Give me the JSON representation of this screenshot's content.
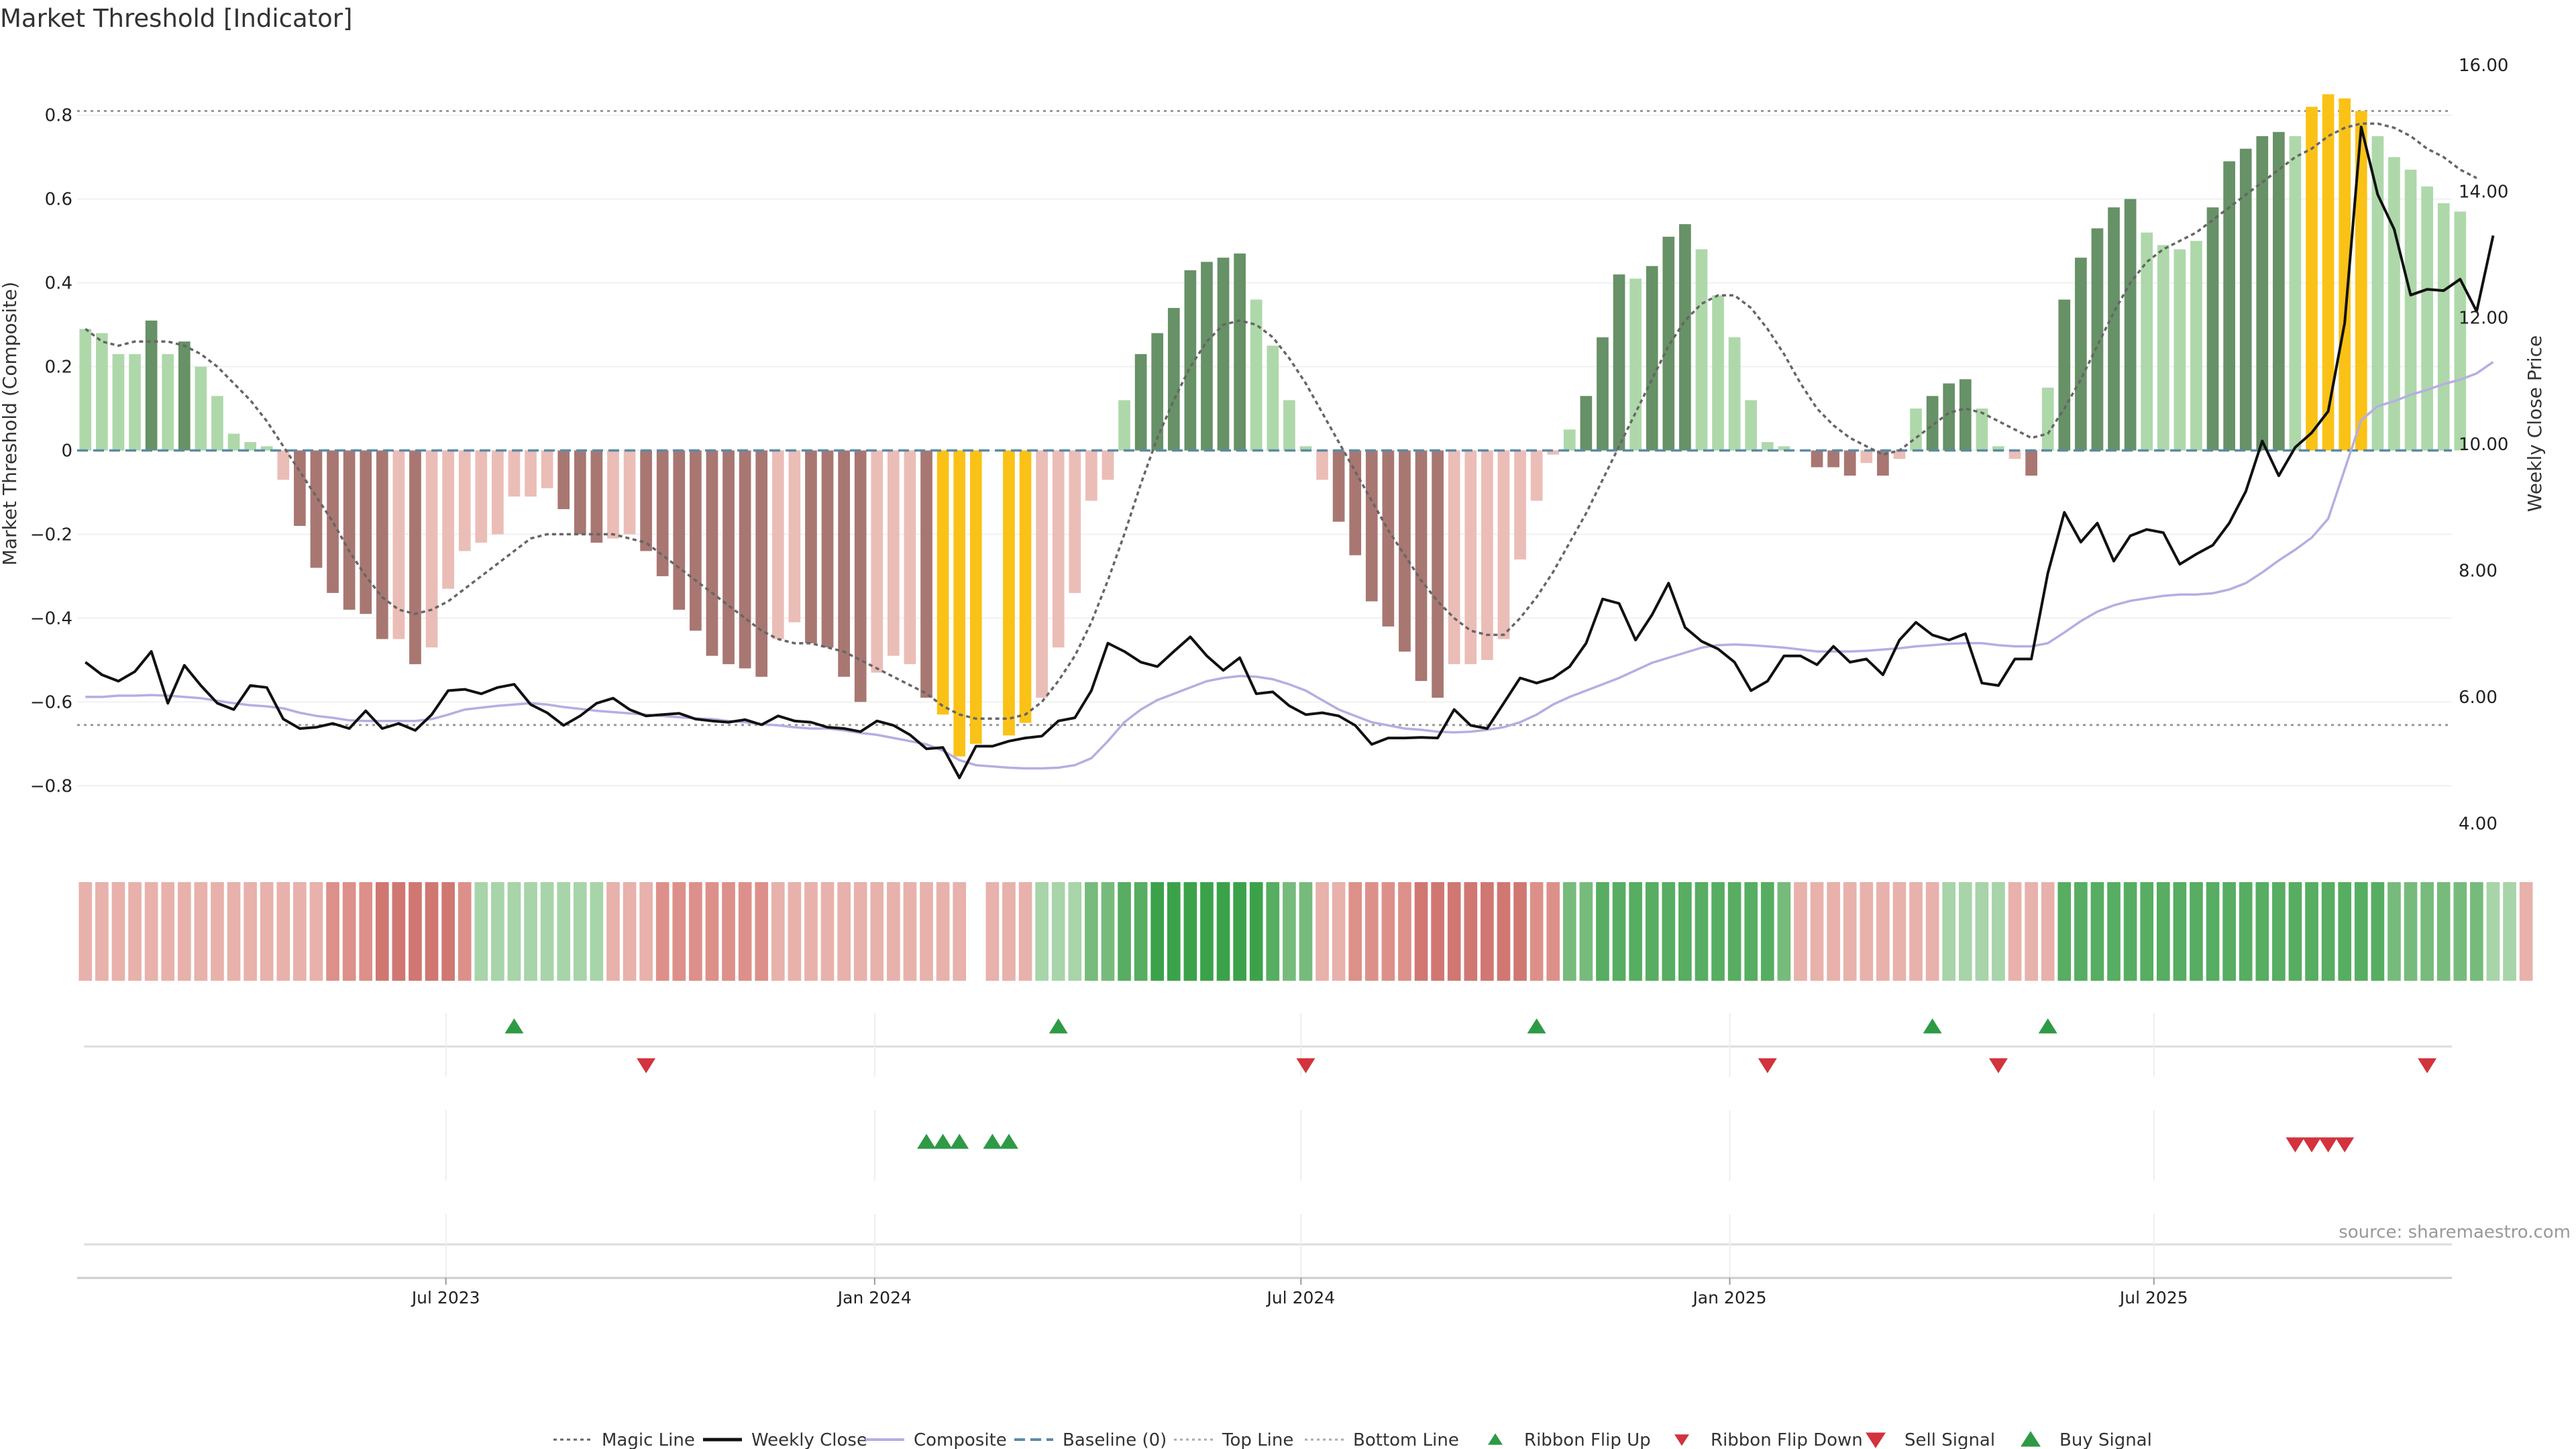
{
  "chart_data": {
    "type": "bar",
    "title": "Market Threshold [Indicator]",
    "ylabel": "Market Threshold (Composite)",
    "y2label": "Weekly Close Price",
    "ylim": [
      -0.95,
      0.95
    ],
    "y2lim": [
      3.6,
      16.2
    ],
    "yticks": [
      -0.8,
      -0.6,
      -0.4,
      -0.2,
      0,
      0.2,
      0.4,
      0.6,
      0.8
    ],
    "ytick_labels": [
      "−0.8",
      "−0.6",
      "−0.4",
      "−0.2",
      "0",
      "0.2",
      "0.4",
      "0.6",
      "0.8"
    ],
    "y2ticks": [
      4,
      6,
      8,
      10,
      12,
      14,
      16
    ],
    "y2tick_labels": [
      "4.00",
      "6.00",
      "8.00",
      "10.00",
      "12.00",
      "14.00",
      "16.00"
    ],
    "xticks": [
      21.86,
      47.86,
      73.71,
      99.71,
      125.43
    ],
    "xtick_labels": [
      "Jul 2023",
      "Jan 2024",
      "Jul 2024",
      "Jan 2025",
      "Jul 2025"
    ],
    "x_range": [
      -0.5,
      143.5
    ],
    "top_line": 0.81,
    "bottom_line": -0.655,
    "baseline": 0,
    "grid": true,
    "legend_position": "bottom-center",
    "source": "source: sharemaestro.com",
    "colors": {
      "strong_pos": "#679166",
      "weak_pos": "#aed8aa",
      "strong_neg": "#a87772",
      "weak_neg": "#ebbdb7",
      "extreme": "#fac216",
      "composite": "#b5aee2",
      "close": "#111111",
      "magic": "#666666",
      "baseline": "#5b8aa7",
      "buy": "#2e9a45",
      "sell": "#d2333c"
    },
    "composite_bars": [
      0.29,
      0.28,
      0.23,
      0.23,
      0.31,
      0.23,
      0.26,
      0.2,
      0.13,
      0.04,
      0.02,
      0.01,
      -0.07,
      -0.18,
      -0.28,
      -0.34,
      -0.38,
      -0.39,
      -0.45,
      -0.45,
      -0.51,
      -0.47,
      -0.33,
      -0.24,
      -0.22,
      -0.2,
      -0.11,
      -0.11,
      -0.09,
      -0.14,
      -0.2,
      -0.22,
      -0.21,
      -0.2,
      -0.24,
      -0.3,
      -0.38,
      -0.43,
      -0.49,
      -0.51,
      -0.52,
      -0.54,
      -0.45,
      -0.41,
      -0.46,
      -0.47,
      -0.54,
      -0.6,
      -0.53,
      -0.49,
      -0.51,
      -0.59,
      -0.63,
      -0.73,
      -0.7,
      0,
      -0.68,
      -0.65,
      -0.59,
      -0.47,
      -0.34,
      -0.12,
      -0.07,
      0.12,
      0.23,
      0.28,
      0.34,
      0.43,
      0.45,
      0.46,
      0.47,
      0.36,
      0.25,
      0.12,
      0.01,
      -0.07,
      -0.17,
      -0.25,
      -0.36,
      -0.42,
      -0.48,
      -0.55,
      -0.59,
      -0.51,
      -0.51,
      -0.5,
      -0.45,
      -0.26,
      -0.12,
      -0.01,
      0.05,
      0.13,
      0.27,
      0.42,
      0.41,
      0.44,
      0.51,
      0.54,
      0.48,
      0.37,
      0.27,
      0.12,
      0.02,
      0.01,
      0,
      -0.04,
      -0.04,
      -0.06,
      -0.03,
      -0.06,
      -0.02,
      0.1,
      0.13,
      0.16,
      0.17,
      0.1,
      0.01,
      -0.02,
      -0.06,
      0.15,
      0.36,
      0.46,
      0.53,
      0.58,
      0.6,
      0.52,
      0.49,
      0.48,
      0.5,
      0.58,
      0.69,
      0.72,
      0.75,
      0.76,
      0.75,
      0.82,
      0.85,
      0.84,
      0.81,
      0.75,
      0.7,
      0.67,
      0.63,
      0.59,
      0.57
    ],
    "bar_classes": [
      "W",
      "W",
      "W",
      "W",
      "S",
      "W",
      "S",
      "W",
      "W",
      "W",
      "W",
      "W",
      "w",
      "s",
      "s",
      "s",
      "s",
      "s",
      "s",
      "w",
      "s",
      "w",
      "w",
      "w",
      "w",
      "w",
      "w",
      "w",
      "w",
      "s",
      "s",
      "s",
      "w",
      "w",
      "s",
      "s",
      "s",
      "s",
      "s",
      "s",
      "s",
      "s",
      "w",
      "w",
      "s",
      "s",
      "s",
      "s",
      "w",
      "w",
      "w",
      "s",
      "E",
      "E",
      "E",
      "N",
      "E",
      "E",
      "w",
      "w",
      "w",
      "w",
      "w",
      "W",
      "S",
      "S",
      "S",
      "S",
      "S",
      "S",
      "S",
      "W",
      "W",
      "W",
      "W",
      "w",
      "s",
      "s",
      "s",
      "s",
      "s",
      "s",
      "s",
      "w",
      "w",
      "w",
      "w",
      "w",
      "w",
      "w",
      "W",
      "S",
      "S",
      "S",
      "W",
      "S",
      "S",
      "S",
      "W",
      "W",
      "W",
      "W",
      "W",
      "W",
      "W",
      "s",
      "s",
      "s",
      "w",
      "s",
      "w",
      "W",
      "S",
      "S",
      "S",
      "W",
      "W",
      "w",
      "s",
      "W",
      "S",
      "S",
      "S",
      "S",
      "S",
      "W",
      "W",
      "W",
      "W",
      "S",
      "S",
      "S",
      "S",
      "S",
      "W",
      "E",
      "E",
      "E",
      "E",
      "W",
      "W",
      "W",
      "W",
      "W",
      "W"
    ],
    "composite_line": [
      6.0,
      6.0,
      6.02,
      6.02,
      6.03,
      6.02,
      6.0,
      5.98,
      5.94,
      5.9,
      5.87,
      5.85,
      5.82,
      5.75,
      5.7,
      5.67,
      5.63,
      5.62,
      5.62,
      5.62,
      5.62,
      5.65,
      5.72,
      5.8,
      5.83,
      5.86,
      5.88,
      5.9,
      5.88,
      5.84,
      5.81,
      5.78,
      5.76,
      5.74,
      5.72,
      5.7,
      5.68,
      5.66,
      5.65,
      5.62,
      5.6,
      5.57,
      5.55,
      5.52,
      5.5,
      5.5,
      5.47,
      5.43,
      5.4,
      5.35,
      5.3,
      5.25,
      5.15,
      5.0,
      4.92,
      4.9,
      4.88,
      4.87,
      4.87,
      4.88,
      4.92,
      5.03,
      5.3,
      5.6,
      5.8,
      5.95,
      6.05,
      6.15,
      6.25,
      6.3,
      6.33,
      6.32,
      6.28,
      6.2,
      6.1,
      5.95,
      5.8,
      5.7,
      5.6,
      5.55,
      5.5,
      5.48,
      5.45,
      5.44,
      5.45,
      5.48,
      5.52,
      5.6,
      5.72,
      5.88,
      6.0,
      6.1,
      6.2,
      6.3,
      6.42,
      6.54,
      6.62,
      6.7,
      6.78,
      6.82,
      6.83,
      6.82,
      6.8,
      6.78,
      6.75,
      6.72,
      6.72,
      6.72,
      6.73,
      6.75,
      6.77,
      6.8,
      6.82,
      6.84,
      6.85,
      6.85,
      6.82,
      6.8,
      6.8,
      6.85,
      7.02,
      7.2,
      7.35,
      7.45,
      7.52,
      7.56,
      7.6,
      7.62,
      7.62,
      7.64,
      7.7,
      7.8,
      7.97,
      8.16,
      8.33,
      8.52,
      8.82,
      9.6,
      10.38,
      10.6,
      10.68,
      10.78,
      10.86,
      10.95,
      11.02,
      11.12,
      11.3
    ],
    "weekly_close": [
      6.55,
      6.35,
      6.25,
      6.4,
      6.72,
      5.9,
      6.5,
      6.18,
      5.9,
      5.8,
      6.18,
      6.15,
      5.65,
      5.5,
      5.52,
      5.58,
      5.5,
      5.78,
      5.5,
      5.58,
      5.47,
      5.72,
      6.1,
      6.12,
      6.05,
      6.15,
      6.2,
      5.88,
      5.75,
      5.55,
      5.7,
      5.9,
      5.98,
      5.8,
      5.7,
      5.72,
      5.74,
      5.65,
      5.62,
      5.6,
      5.64,
      5.56,
      5.7,
      5.62,
      5.6,
      5.52,
      5.5,
      5.45,
      5.62,
      5.55,
      5.4,
      5.18,
      5.2,
      4.72,
      5.22,
      5.22,
      5.3,
      5.35,
      5.38,
      5.62,
      5.67,
      6.1,
      6.85,
      6.72,
      6.55,
      6.48,
      6.72,
      6.95,
      6.65,
      6.42,
      6.62,
      6.05,
      6.08,
      5.86,
      5.72,
      5.75,
      5.7,
      5.55,
      5.25,
      5.35,
      5.35,
      5.36,
      5.35,
      5.8,
      5.55,
      5.5,
      5.9,
      6.3,
      6.22,
      6.3,
      6.48,
      6.85,
      7.55,
      7.48,
      6.9,
      7.3,
      7.8,
      7.1,
      6.88,
      6.76,
      6.55,
      6.1,
      6.25,
      6.65,
      6.65,
      6.51,
      6.8,
      6.55,
      6.6,
      6.35,
      6.9,
      7.18,
      6.98,
      6.9,
      7.0,
      6.22,
      6.18,
      6.6,
      6.6,
      7.96,
      8.92,
      8.45,
      8.75,
      8.15,
      8.55,
      8.65,
      8.6,
      8.1,
      8.26,
      8.4,
      8.75,
      9.25,
      10.05,
      9.5,
      9.95,
      10.18,
      10.52,
      11.92,
      15.02,
      13.95,
      13.4,
      12.36,
      12.45,
      12.43,
      12.61,
      12.1,
      13.3
    ],
    "magic_line": [
      0.29,
      0.26,
      0.25,
      0.26,
      0.26,
      0.26,
      0.25,
      0.23,
      0.2,
      0.16,
      0.12,
      0.07,
      0.01,
      -0.05,
      -0.11,
      -0.17,
      -0.24,
      -0.3,
      -0.35,
      -0.38,
      -0.39,
      -0.38,
      -0.36,
      -0.33,
      -0.3,
      -0.27,
      -0.24,
      -0.21,
      -0.2,
      -0.2,
      -0.2,
      -0.2,
      -0.2,
      -0.21,
      -0.22,
      -0.25,
      -0.28,
      -0.31,
      -0.34,
      -0.37,
      -0.4,
      -0.43,
      -0.45,
      -0.46,
      -0.46,
      -0.47,
      -0.48,
      -0.5,
      -0.52,
      -0.54,
      -0.56,
      -0.58,
      -0.61,
      -0.63,
      -0.64,
      -0.64,
      -0.64,
      -0.63,
      -0.6,
      -0.55,
      -0.49,
      -0.41,
      -0.31,
      -0.2,
      -0.08,
      0.03,
      0.12,
      0.2,
      0.26,
      0.3,
      0.31,
      0.3,
      0.27,
      0.22,
      0.16,
      0.09,
      0.02,
      -0.05,
      -0.12,
      -0.19,
      -0.25,
      -0.31,
      -0.36,
      -0.4,
      -0.43,
      -0.44,
      -0.44,
      -0.4,
      -0.35,
      -0.29,
      -0.22,
      -0.15,
      -0.07,
      0.01,
      0.09,
      0.17,
      0.25,
      0.31,
      0.35,
      0.37,
      0.37,
      0.34,
      0.29,
      0.23,
      0.16,
      0.1,
      0.06,
      0.03,
      0.01,
      -0.01,
      0,
      0.03,
      0.06,
      0.09,
      0.1,
      0.09,
      0.07,
      0.05,
      0.03,
      0.04,
      0.1,
      0.17,
      0.25,
      0.33,
      0.4,
      0.45,
      0.48,
      0.5,
      0.52,
      0.55,
      0.58,
      0.61,
      0.64,
      0.67,
      0.7,
      0.72,
      0.75,
      0.77,
      0.78,
      0.78,
      0.77,
      0.75,
      0.72,
      0.7,
      0.67,
      0.65
    ],
    "ribbon_strengths": [
      -1,
      -1,
      -1,
      -1,
      -1,
      -1,
      -1,
      -1,
      -1,
      -1,
      -1,
      -1,
      -1,
      -1,
      -1,
      -2,
      -2,
      -2,
      -3,
      -3,
      -3,
      -3,
      -3,
      -2,
      1,
      1,
      1,
      1,
      1,
      1,
      1,
      1,
      -1,
      -1,
      -1,
      -2,
      -2,
      -2,
      -2,
      -2,
      -2,
      -2,
      -1,
      -1,
      -1,
      -1,
      -1,
      -1,
      -1,
      -1,
      -1,
      -1,
      -1,
      -1,
      0,
      -1,
      -1,
      -1,
      1,
      1,
      1,
      2,
      2,
      3,
      3,
      4,
      4,
      4,
      4,
      4,
      4,
      4,
      3,
      2,
      2,
      -1,
      -1,
      -2,
      -2,
      -2,
      -2,
      -3,
      -3,
      -3,
      -3,
      -3,
      -3,
      -3,
      -2,
      -2,
      2,
      2,
      3,
      3,
      3,
      3,
      3,
      3,
      3,
      3,
      3,
      3,
      3,
      2,
      -1,
      -1,
      -1,
      -1,
      -1,
      -1,
      -1,
      -1,
      -1,
      1,
      1,
      1,
      1,
      -1,
      -1,
      -1,
      3,
      3,
      3,
      3,
      3,
      3,
      3,
      3,
      3,
      3,
      3,
      3,
      3,
      3,
      3,
      3,
      3,
      3,
      3,
      3,
      2,
      2,
      2,
      2,
      2,
      2,
      1,
      1,
      -1
    ],
    "ribbon_flip_up": [
      26,
      59,
      88,
      112,
      119
    ],
    "ribbon_flip_down": [
      34,
      74,
      102,
      116,
      142
    ],
    "buy_signal": [
      51,
      52,
      53,
      55,
      56
    ],
    "sell_signal": [
      134,
      135,
      136,
      137
    ],
    "legend": [
      "Magic Line",
      "Weekly Close",
      "Composite",
      "Baseline (0)",
      "Top Line",
      "Bottom Line",
      "Ribbon Flip Up",
      "Ribbon Flip Down",
      "Sell Signal",
      "Buy Signal"
    ]
  }
}
